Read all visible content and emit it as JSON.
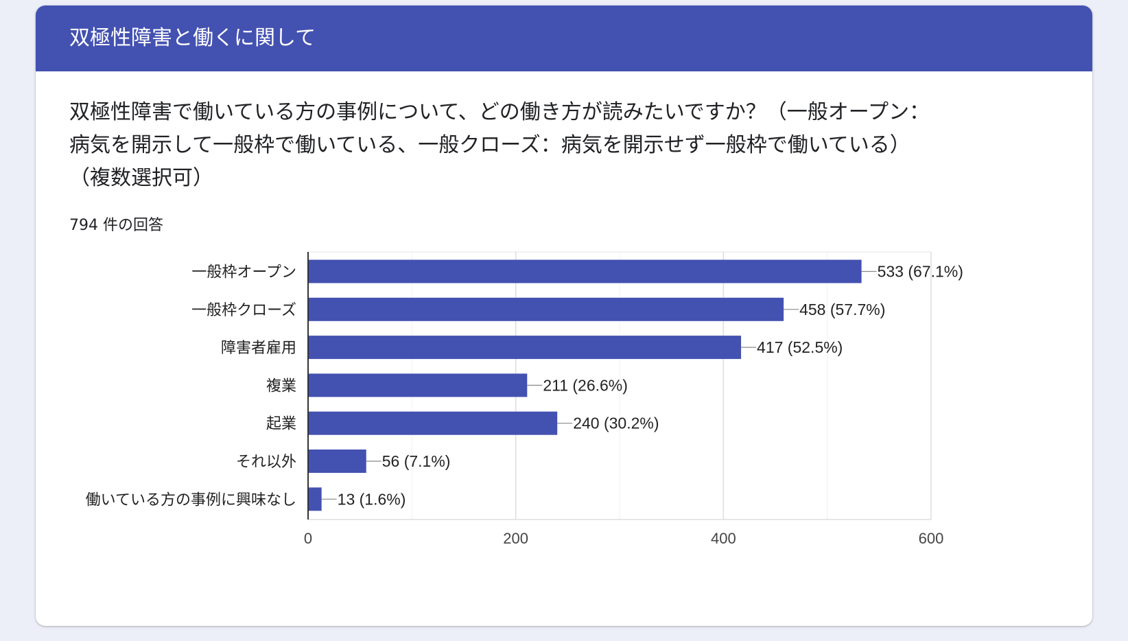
{
  "section": {
    "title": "双極性障害と働くに関して"
  },
  "question": {
    "lines": [
      "双極性障害で働いている方の事例について、どの働き方が読みたいですか？（一般オープン：",
      "病気を開示して一般枠で働いている、一般クローズ：病気を開示せず一般枠で働いている）",
      "（複数選択可）"
    ]
  },
  "responses": {
    "count_label": "794 件の回答"
  },
  "colors": {
    "header": "#4351b1",
    "bar": "#4351b1",
    "background": "#eceef8"
  },
  "chart_data": {
    "type": "bar",
    "orientation": "horizontal",
    "categories": [
      "一般枠オープン",
      "一般枠クローズ",
      "障害者雇用",
      "複業",
      "起業",
      "それ以外",
      "働いている方の事例に興味なし"
    ],
    "values": [
      533,
      458,
      417,
      211,
      240,
      56,
      13
    ],
    "value_labels": [
      "533 (67.1%)",
      "458 (57.7%)",
      "417 (52.5%)",
      "211 (26.6%)",
      "240 (30.2%)",
      "56 (7.1%)",
      "13 (1.6%)"
    ],
    "xlim": [
      0,
      600
    ],
    "x_ticks": [
      0,
      200,
      400,
      600
    ],
    "minor_gridlines": [
      100,
      300,
      500
    ],
    "grid": true,
    "legend": "none"
  }
}
